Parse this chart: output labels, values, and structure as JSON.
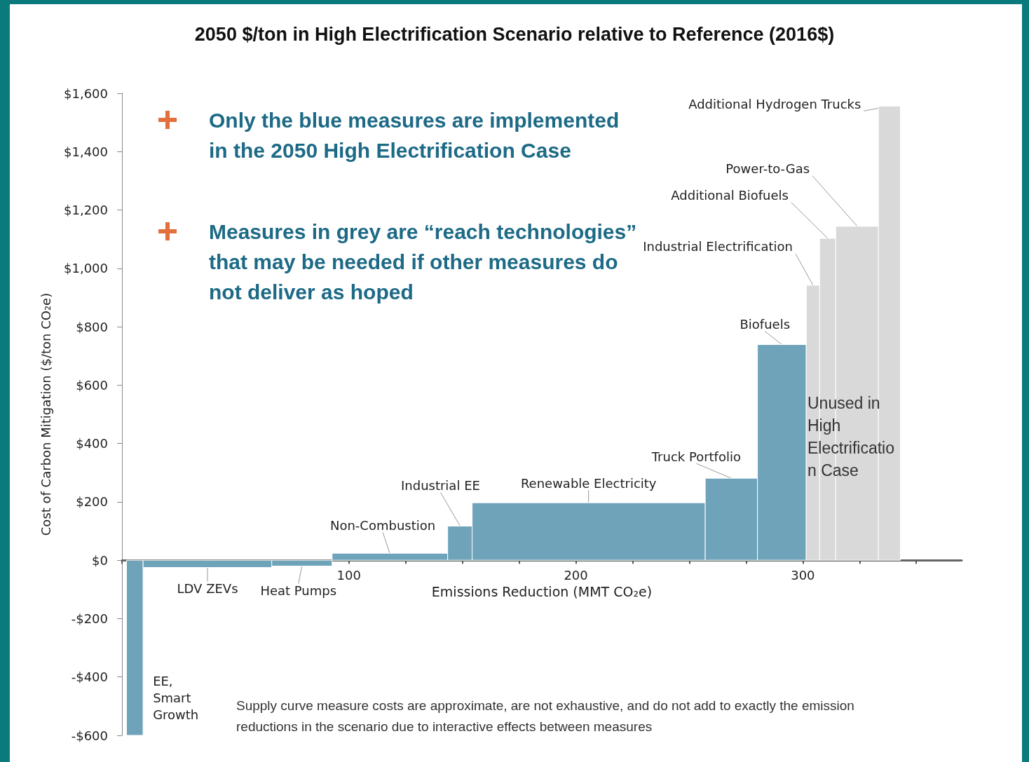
{
  "chart_data": {
    "type": "histogram",
    "title": "2050 $/ton in High Electrification Scenario relative to Reference (2016$)",
    "xlabel": "Emissions Reduction (MMT CO₂e)",
    "ylabel": "Cost of Carbon Mitigation ($/ton CO₂e)",
    "bins": [
      2,
      9.3,
      66,
      92.6,
      143.5,
      154.3,
      257,
      280,
      301.5,
      307.4,
      314.5,
      333.3,
      343
    ],
    "values": [
      -600,
      -25,
      -20,
      24,
      117,
      197,
      281,
      739,
      942,
      1103,
      1144,
      1556
    ],
    "colors": [
      "#6fa3ba",
      "#6fa3ba",
      "#6fa3ba",
      "#6fa3ba",
      "#6fa3ba",
      "#6fa3ba",
      "#6fa3ba",
      "#6fa3ba",
      "#d9d9d9",
      "#d9d9d9",
      "#d9d9d9",
      "#d9d9d9"
    ],
    "xlim": [
      0,
      370
    ],
    "xticks": [
      {
        "value": 0,
        "label": null
      },
      {
        "value": 25,
        "label": null
      },
      {
        "value": 50,
        "label": null
      },
      {
        "value": 75,
        "label": null
      },
      100,
      {
        "value": 125,
        "label": null
      },
      {
        "value": 150,
        "label": null
      },
      {
        "value": 175,
        "label": null
      },
      200,
      {
        "value": 225,
        "label": null
      },
      {
        "value": 250,
        "label": null
      },
      {
        "value": 275,
        "label": null
      },
      300,
      {
        "value": 325,
        "label": null
      },
      {
        "value": 350,
        "label": null
      }
    ],
    "ylim": [
      -600,
      1600
    ],
    "yticks": [
      {
        "value": -600,
        "label": "-$600"
      },
      {
        "value": -400,
        "label": "-$400"
      },
      {
        "value": -200,
        "label": "-$200"
      },
      {
        "value": 0,
        "label": "$0"
      },
      {
        "value": 200,
        "label": "$200"
      },
      {
        "value": 400,
        "label": "$400"
      },
      {
        "value": 600,
        "label": "$600"
      },
      {
        "value": 800,
        "label": "$800"
      },
      {
        "value": 1000,
        "label": "$1,000"
      },
      {
        "value": 1200,
        "label": "$1,200"
      },
      {
        "value": 1400,
        "label": "$1,400"
      },
      {
        "value": 1600,
        "label": "$1,600"
      }
    ],
    "annotations": [
      {
        "text": "EE, Smart Growth",
        "x": 5.6,
        "y": -600
      },
      {
        "text": "LDV ZEVs",
        "x": 37.7,
        "y": -25
      },
      {
        "text": "Heat Pumps",
        "x": 79.3,
        "y": -20
      },
      {
        "text": "Non-Combustion",
        "x": 118,
        "y": 24
      },
      {
        "text": "Industrial EE",
        "x": 149,
        "y": 117
      },
      {
        "text": "Renewable Electricity",
        "x": 205.6,
        "y": 197
      },
      {
        "text": "Truck Portfolio",
        "x": 268.5,
        "y": 281
      },
      {
        "text": "Biofuels",
        "x": 290.7,
        "y": 739
      },
      {
        "text": "Industrial Electrification",
        "x": 304.5,
        "y": 942
      },
      {
        "text": "Additional Biofuels",
        "x": 311,
        "y": 1103
      },
      {
        "text": "Power-to-Gas",
        "x": 324,
        "y": 1144
      },
      {
        "text": "Additional Hydrogen Trucks",
        "x": 338,
        "y": 1556
      },
      "Only the blue measures are implemented in the 2050 High Electrification Case",
      "Measures in grey are “reach technologies” that may be needed if other measures do not deliver as hoped",
      "Unused in High Electrification Case",
      "Supply curve measure costs are approximate, are not exhaustive, and do not add to exactly the emission reductions in the scenario due to interactive effects between measures"
    ]
  }
}
